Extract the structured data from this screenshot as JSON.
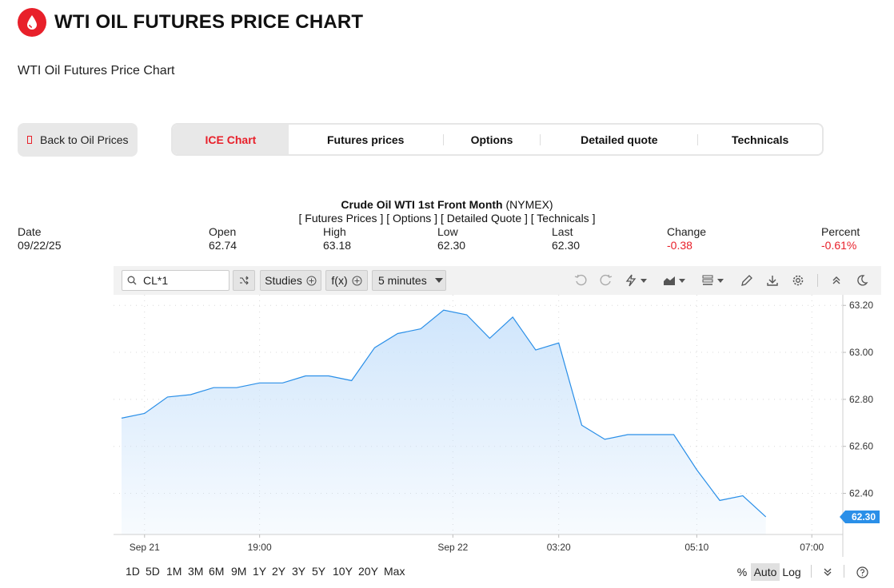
{
  "header": {
    "title": "WTI OIL FUTURES PRICE CHART",
    "logo_icon": "oil-drop-icon",
    "brand_color": "#e8202a"
  },
  "subtitle": "WTI Oil Futures Price Chart",
  "back_button": {
    "label": "Back to Oil Prices"
  },
  "tabs": [
    {
      "label": "ICE Chart",
      "active": true
    },
    {
      "label": "Futures prices"
    },
    {
      "label": "Options"
    },
    {
      "label": "Detailed quote"
    },
    {
      "label": "Technicals"
    }
  ],
  "quote": {
    "name": "Crude Oil WTI 1st Front Month",
    "exchange": "(NYMEX)",
    "links": [
      "[ Futures Prices ]",
      "[ Options ]",
      "[ Detailed Quote ]",
      "[ Technicals ]"
    ],
    "fields": [
      {
        "label": "Date",
        "value": "09/22/25"
      },
      {
        "label": "Open",
        "value": "62.74"
      },
      {
        "label": "High",
        "value": "63.18"
      },
      {
        "label": "Low",
        "value": "62.30"
      },
      {
        "label": "Last",
        "value": "62.30"
      },
      {
        "label": "Change",
        "value": "-0.38",
        "negative": true
      },
      {
        "label": "Percent",
        "value": "-0.61%",
        "negative": true
      }
    ]
  },
  "toolbar": {
    "symbol": "CL*1",
    "studies_label": "Studies",
    "fx_label": "f(x)",
    "interval_label": "5 minutes",
    "icons": [
      "undo-icon",
      "redo-icon",
      "lightning-icon",
      "chart-type-icon",
      "layout-icon",
      "pencil-icon",
      "download-icon",
      "settings-icon",
      "collapse-icon",
      "dark-mode-icon"
    ]
  },
  "chart_data": {
    "type": "area",
    "x": [
      0,
      1,
      2,
      3,
      4,
      5,
      6,
      7,
      8,
      9,
      10,
      11,
      12,
      13,
      14,
      15,
      16,
      17,
      18,
      19,
      20,
      21,
      22,
      23,
      24,
      25,
      26,
      27,
      28
    ],
    "values": [
      62.72,
      62.74,
      62.81,
      62.82,
      62.85,
      62.85,
      62.87,
      62.87,
      62.9,
      62.9,
      62.88,
      63.02,
      63.08,
      63.1,
      63.18,
      63.16,
      63.06,
      63.15,
      63.01,
      63.04,
      62.69,
      62.63,
      62.65,
      62.65,
      62.65,
      62.5,
      62.37,
      62.39,
      62.3
    ],
    "ylim": [
      62.225,
      63.245
    ],
    "yticks": [
      "63.20",
      "63.00",
      "62.80",
      "62.60",
      "62.40"
    ],
    "ytick_values": [
      63.2,
      63.0,
      62.8,
      62.6,
      62.4
    ],
    "xticks": [
      "Sep 21",
      "19:00",
      "Sep 22",
      "03:20",
      "05:10",
      "07:00"
    ],
    "xtick_positions": [
      1,
      6,
      14.4,
      19,
      25,
      30
    ],
    "xlim": [
      0,
      31
    ],
    "last_label": "62.30",
    "line_color": "#2a8fe8",
    "fill_color": "#cde4fb"
  },
  "ranges": [
    "1D",
    "5D",
    "1M",
    "3M",
    "6M",
    "9M",
    "1Y",
    "2Y",
    "3Y",
    "5Y",
    "10Y",
    "20Y",
    "Max"
  ],
  "scale_options": [
    "%",
    "Auto",
    "Log"
  ],
  "active_scale": "Auto"
}
